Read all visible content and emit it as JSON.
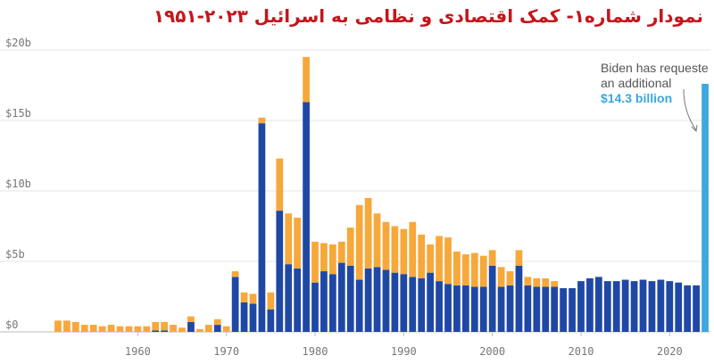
{
  "title": "نمودار شماره۱- کمک اقتصادی و نظامی به اسرائیل ۲۰۲۳-۱۹۵۱",
  "annotation": {
    "line1": "Biden has requeste",
    "line2": "an additional",
    "highlight": "$14.3 billion"
  },
  "colors": {
    "military": "#1f48a5",
    "economic": "#f6a83a",
    "requested": "#3ea7de",
    "grid": "#e6e6e6",
    "axis": "#bbbbbb"
  },
  "chart_data": {
    "type": "bar",
    "stacked": true,
    "x": [
      1951,
      1952,
      1953,
      1954,
      1955,
      1956,
      1957,
      1958,
      1959,
      1960,
      1961,
      1962,
      1963,
      1964,
      1965,
      1966,
      1967,
      1968,
      1969,
      1970,
      1971,
      1972,
      1973,
      1974,
      1975,
      1976,
      1977,
      1978,
      1979,
      1980,
      1981,
      1982,
      1983,
      1984,
      1985,
      1986,
      1987,
      1988,
      1989,
      1990,
      1991,
      1992,
      1993,
      1994,
      1995,
      1996,
      1997,
      1998,
      1999,
      2000,
      2001,
      2002,
      2003,
      2004,
      2005,
      2006,
      2007,
      2008,
      2009,
      2010,
      2011,
      2012,
      2013,
      2014,
      2015,
      2016,
      2017,
      2018,
      2019,
      2020,
      2021,
      2022,
      2023
    ],
    "series": [
      {
        "values": [
          0,
          0,
          0,
          0,
          0,
          0,
          0,
          0,
          0,
          0,
          0,
          0.1,
          0.1,
          0,
          0,
          0.7,
          0,
          0,
          0.5,
          0,
          3.9,
          2.1,
          2.0,
          14.8,
          1.6,
          8.6,
          4.8,
          4.5,
          16.3,
          3.5,
          4.3,
          4.1,
          4.9,
          4.7,
          3.7,
          4.5,
          4.6,
          4.4,
          4.2,
          4.1,
          3.9,
          3.8,
          4.2,
          3.6,
          3.4,
          3.3,
          3.3,
          3.2,
          3.2,
          4.7,
          3.2,
          3.3,
          4.7,
          3.3,
          3.2,
          3.2,
          3.2,
          3.1,
          3.1,
          3.6,
          3.8,
          3.9,
          3.6,
          3.6,
          3.7,
          3.6,
          3.7,
          3.6,
          3.7,
          3.6,
          3.5,
          3.3,
          3.3
        ]
      },
      {
        "values": [
          0.8,
          0.8,
          0.7,
          0.5,
          0.5,
          0.4,
          0.5,
          0.4,
          0.4,
          0.4,
          0.4,
          0.6,
          0.6,
          0.5,
          0.3,
          0.4,
          0.2,
          0.5,
          0.4,
          0.4,
          0.4,
          0.7,
          0.7,
          0.4,
          1.2,
          3.7,
          3.6,
          3.6,
          3.2,
          2.9,
          2.0,
          2.1,
          1.5,
          2.7,
          5.3,
          5.0,
          3.8,
          3.4,
          3.3,
          3.2,
          3.9,
          3.1,
          2.0,
          3.2,
          3.3,
          2.4,
          2.2,
          2.4,
          2.2,
          1.1,
          1.4,
          1.0,
          1.1,
          0.6,
          0.6,
          0.6,
          0.4,
          0,
          0,
          0,
          0,
          0,
          0,
          0,
          0,
          0,
          0,
          0,
          0,
          0,
          0,
          0,
          0
        ]
      }
    ],
    "requested": {
      "x": 2024,
      "value": 17.6
    },
    "yticks": [
      "$0",
      "$5b",
      "$10b",
      "$15b",
      "$20b"
    ],
    "ytick_values": [
      0,
      5,
      10,
      15,
      20
    ],
    "xticks": [
      "1960",
      "1970",
      "1980",
      "1990",
      "2000",
      "2010",
      "2020"
    ],
    "xtick_values": [
      1960,
      1970,
      1980,
      1990,
      2000,
      2010,
      2020
    ],
    "ylim": [
      0,
      20
    ],
    "xlim": [
      1950.5,
      2024.6
    ]
  }
}
